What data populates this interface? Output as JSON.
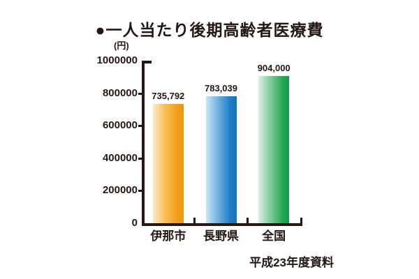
{
  "title": "●一人当たり後期高齢者医療費",
  "unit_label": "(円)",
  "source_note": "平成23年度資料",
  "colors": {
    "text": "#231815",
    "axis": "#231815",
    "background": "#ffffff"
  },
  "chart_data": {
    "type": "bar",
    "title": "一人当たり後期高齢者医療費",
    "ylabel": "(円)",
    "xlabel": "",
    "ylim": [
      0,
      1000000
    ],
    "ytick_interval": 200000,
    "grid": false,
    "legend": "none",
    "categories": [
      "伊那市",
      "長野県",
      "全国"
    ],
    "values": [
      735792,
      783039,
      904000
    ],
    "value_labels": [
      "735,792",
      "783,039",
      "904,000"
    ],
    "yticks": [
      {
        "label": "0",
        "value": 0
      },
      {
        "label": "200000",
        "value": 200000
      },
      {
        "label": "400000",
        "value": 400000
      },
      {
        "label": "600000",
        "value": 600000
      },
      {
        "label": "800000",
        "value": 800000
      },
      {
        "label": "1000000",
        "value": 1000000
      }
    ],
    "bar_gradients": [
      {
        "stops": [
          "#FBEDCB",
          "#F7BE55",
          "#F2A01A",
          "#EE970E"
        ]
      },
      {
        "stops": [
          "#CCE5F6",
          "#6FB0DD",
          "#1F7EC5",
          "#1173BD"
        ]
      },
      {
        "stops": [
          "#E0F2E4",
          "#7CCB96",
          "#27A855",
          "#0F9F45"
        ]
      }
    ],
    "source_note": "平成23年度資料"
  }
}
